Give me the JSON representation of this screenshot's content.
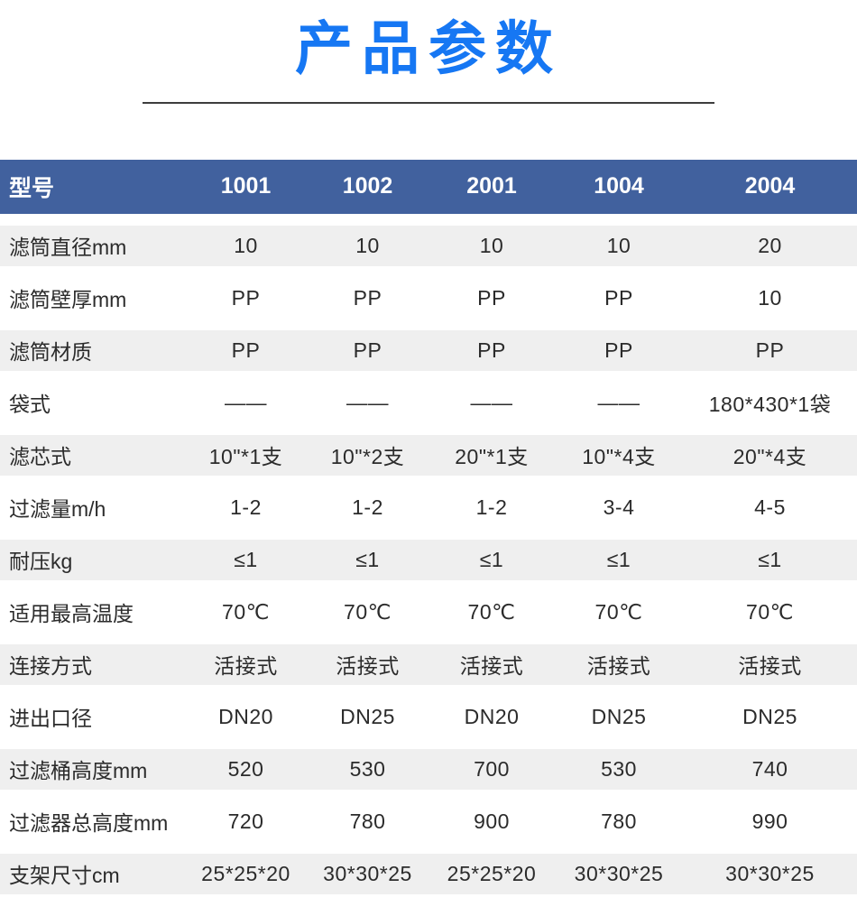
{
  "page": {
    "title": "产品参数"
  },
  "colors": {
    "title_blue": "#1677f3",
    "header_bg": "#41619e",
    "row_alt_bg": "#efefef",
    "divider": "#3d3d3d"
  },
  "table": {
    "header": {
      "label": "型号",
      "models": [
        "1001",
        "1002",
        "2001",
        "1004",
        "2004"
      ]
    },
    "rows": [
      {
        "label": "滤筒直径mm",
        "values": [
          "10",
          "10",
          "10",
          "10",
          "20"
        ]
      },
      {
        "label": "滤筒壁厚mm",
        "values": [
          "PP",
          "PP",
          "PP",
          "PP",
          "10"
        ]
      },
      {
        "label": "滤筒材质",
        "values": [
          "PP",
          "PP",
          "PP",
          "PP",
          "PP"
        ]
      },
      {
        "label": "袋式",
        "values": [
          "——",
          "——",
          "——",
          "——",
          "180*430*1袋"
        ]
      },
      {
        "label": "滤芯式",
        "values": [
          "10\"*1支",
          "10\"*2支",
          "20\"*1支",
          "10\"*4支",
          "20\"*4支"
        ]
      },
      {
        "label": "过滤量m/h",
        "values": [
          "1-2",
          "1-2",
          "1-2",
          "3-4",
          "4-5"
        ]
      },
      {
        "label": "耐压kg",
        "values": [
          "≤1",
          "≤1",
          "≤1",
          "≤1",
          "≤1"
        ]
      },
      {
        "label": "适用最高温度",
        "values": [
          "70℃",
          "70℃",
          "70℃",
          "70℃",
          "70℃"
        ]
      },
      {
        "label": "连接方式",
        "values": [
          "活接式",
          "活接式",
          "活接式",
          "活接式",
          "活接式"
        ]
      },
      {
        "label": "进出口径",
        "values": [
          "DN20",
          "DN25",
          "DN20",
          "DN25",
          "DN25"
        ]
      },
      {
        "label": "过滤桶高度mm",
        "values": [
          "520",
          "530",
          "700",
          "530",
          "740"
        ]
      },
      {
        "label": "过滤器总高度mm",
        "values": [
          "720",
          "780",
          "900",
          "780",
          "990"
        ]
      },
      {
        "label": "支架尺寸cm",
        "values": [
          "25*25*20",
          "30*30*25",
          "25*25*20",
          "30*30*25",
          "30*30*25"
        ]
      }
    ]
  }
}
